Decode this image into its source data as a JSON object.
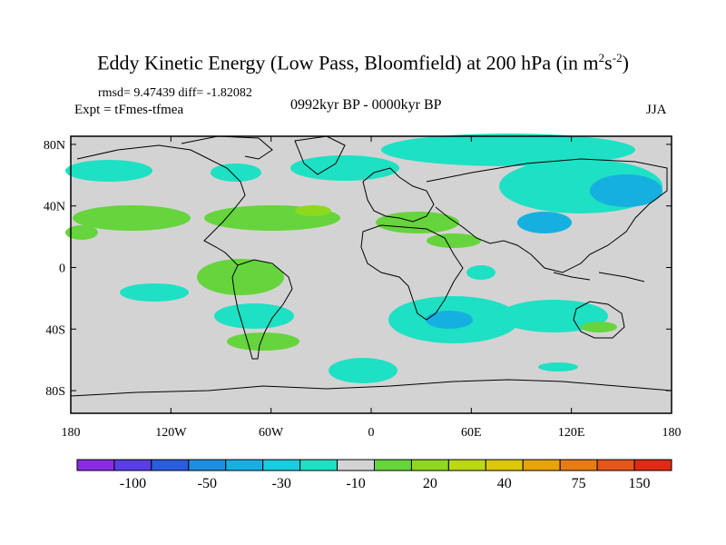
{
  "title": {
    "main": "Eddy Kinetic Energy (Low Pass, Bloomfield) at 200 hPa (in m",
    "sup1": "2",
    "mid": "s",
    "sup2": "-2",
    "end": ")"
  },
  "stats": {
    "text": "rmsd= 9.47439 diff= -1.82082"
  },
  "experiment": {
    "text": "Expt = tFmes-tfmea"
  },
  "period": {
    "text": "0992kyr BP - 0000kyr BP"
  },
  "season": {
    "text": "JJA"
  },
  "map": {
    "projection": "cylindrical equidistant",
    "lon_range": [
      -180,
      180
    ],
    "lat_range": [
      -90,
      90
    ],
    "background_color": "#d3d3d3",
    "lat_ticks": [
      {
        "value": 80,
        "label": "80N"
      },
      {
        "value": 40,
        "label": "40N"
      },
      {
        "value": 0,
        "label": "0"
      },
      {
        "value": -40,
        "label": "40S"
      },
      {
        "value": -80,
        "label": "80S"
      }
    ],
    "lon_ticks": [
      {
        "value": -180,
        "label": "180"
      },
      {
        "value": -120,
        "label": "120W"
      },
      {
        "value": -60,
        "label": "60W"
      },
      {
        "value": 0,
        "label": "0"
      },
      {
        "value": 60,
        "label": "60E"
      },
      {
        "value": 120,
        "label": "120E"
      },
      {
        "value": 180,
        "label": "180"
      }
    ]
  },
  "colorbar": {
    "colors": [
      "#8a2be2",
      "#5a3de6",
      "#2a5ce0",
      "#1e8fe0",
      "#16b0e0",
      "#18cde0",
      "#1ee0c4",
      "#d3d3d3",
      "#66d43c",
      "#8ed81e",
      "#bcd814",
      "#dcc808",
      "#e6a40a",
      "#e87c14",
      "#e8541e",
      "#e02a14"
    ],
    "labels": [
      {
        "index": 2,
        "text": "-100"
      },
      {
        "index": 4,
        "text": "-50"
      },
      {
        "index": 6,
        "text": "-30"
      },
      {
        "index": 8,
        "text": "-10"
      },
      {
        "index": 10,
        "text": "20"
      },
      {
        "index": 12,
        "text": "40"
      },
      {
        "index": 14,
        "text": "75"
      },
      {
        "index": 16,
        "text": "150"
      }
    ]
  }
}
